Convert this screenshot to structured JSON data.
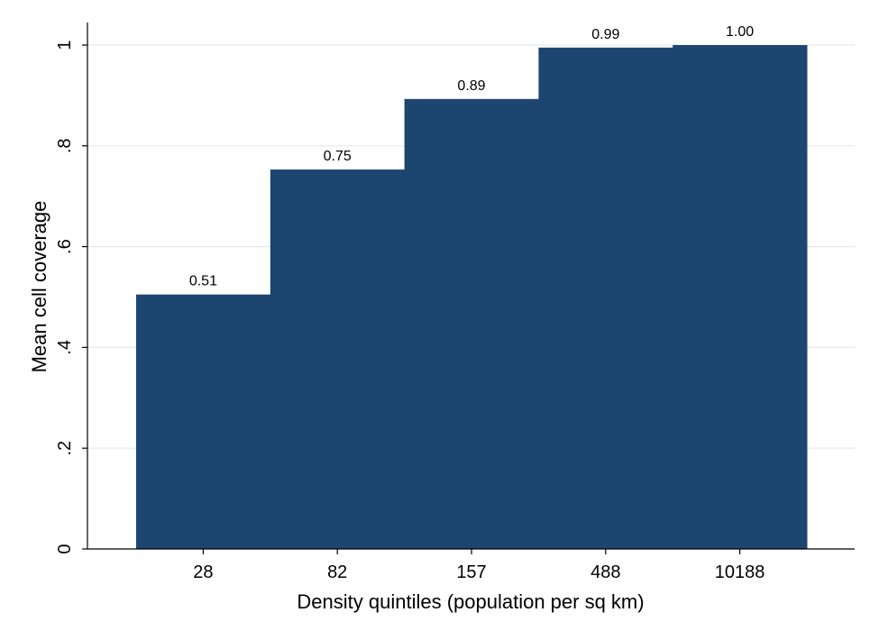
{
  "chart_data": {
    "type": "bar",
    "categories": [
      "28",
      "82",
      "157",
      "488",
      "10188"
    ],
    "values": [
      0.505,
      0.753,
      0.893,
      0.995,
      1.0
    ],
    "data_labels": [
      "0.51",
      "0.75",
      "0.89",
      "0.99",
      "1.00"
    ],
    "xlabel": "Density quintiles (population per sq km)",
    "ylabel": "Mean cell coverage",
    "ylim": [
      0,
      1
    ],
    "yticks": [
      0,
      0.2,
      0.4,
      0.6,
      0.8,
      1
    ],
    "ytick_labels": [
      "0",
      ".2",
      ".4",
      ".6",
      ".8",
      "1"
    ],
    "grid": true,
    "bar_color": "#1c4670",
    "grid_color": "#e3ebea"
  }
}
